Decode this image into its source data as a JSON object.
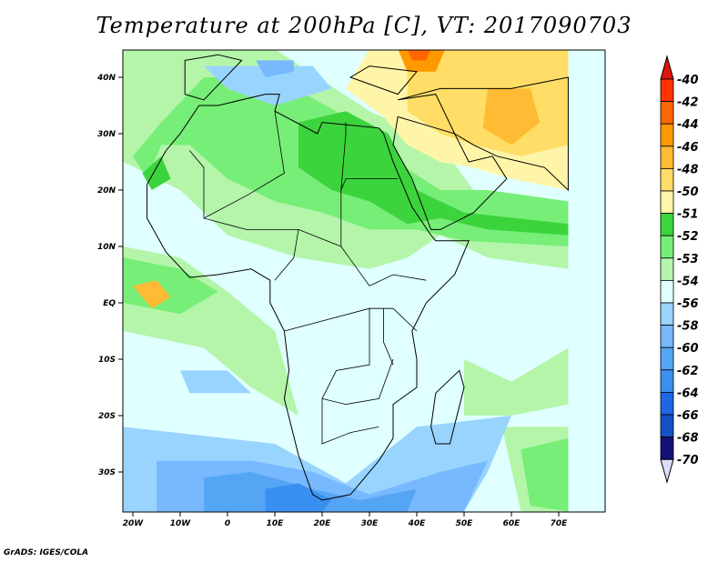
{
  "title": "Temperature at 200hPa [C], VT: 2017090703",
  "footer": "GrADS: IGES/COLA",
  "lat_labels": [
    "40N",
    "30N",
    "20N",
    "10N",
    "EQ",
    "10S",
    "20S",
    "30S"
  ],
  "lat_values": [
    40,
    30,
    20,
    10,
    0,
    -10,
    -20,
    -30
  ],
  "lon_labels": [
    "20W",
    "10W",
    "0",
    "10E",
    "20E",
    "30E",
    "40E",
    "50E",
    "60E",
    "70E"
  ],
  "lon_values": [
    -20,
    -10,
    0,
    10,
    20,
    30,
    40,
    50,
    60,
    70
  ],
  "colorbar": {
    "labels": [
      "-40",
      "-42",
      "-44",
      "-46",
      "-48",
      "-50",
      "-51",
      "-52",
      "-53",
      "-54",
      "-56",
      "-58",
      "-60",
      "-62",
      "-64",
      "-66",
      "-68",
      "-70"
    ],
    "top_color": "#e0140a",
    "bottom_color": "#dcdcff",
    "colors": [
      "#ff3300",
      "#ff6600",
      "#ff9900",
      "#ffbb33",
      "#ffdd66",
      "#fff5a8",
      "#3cd43c",
      "#77ee77",
      "#b4f5aa",
      "#e0ffff",
      "#99d4ff",
      "#77b8ff",
      "#55a5f5",
      "#3a90f0",
      "#1f66e5",
      "#1550c8",
      "#111177"
    ]
  }
}
